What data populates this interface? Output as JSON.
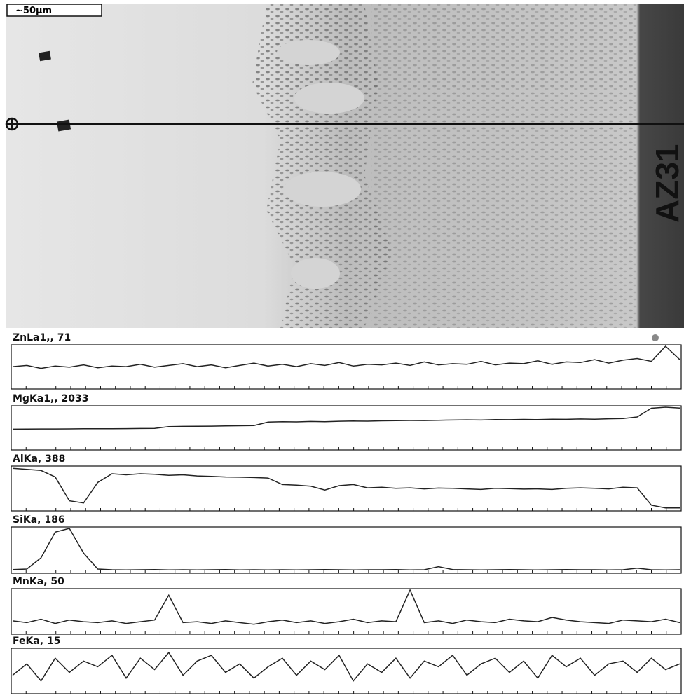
{
  "image": {
    "scale_bar": "~50μm",
    "label": "AZ31"
  },
  "chart_data": [
    {
      "type": "line",
      "title": "ZnLa1,, 71",
      "ylim": [
        0,
        71
      ],
      "color": "#222",
      "values": [
        36,
        38,
        33,
        37,
        35,
        39,
        34,
        37,
        36,
        40,
        35,
        38,
        41,
        36,
        39,
        34,
        38,
        42,
        37,
        40,
        36,
        41,
        38,
        43,
        37,
        40,
        39,
        42,
        38,
        44,
        39,
        41,
        40,
        45,
        39,
        42,
        41,
        46,
        40,
        44,
        43,
        48,
        42,
        47,
        50,
        45,
        71,
        48
      ]
    },
    {
      "type": "line",
      "title": "MgKa1,, 2033",
      "ylim": [
        0,
        2033
      ],
      "color": "#222",
      "values": [
        950,
        955,
        960,
        960,
        965,
        970,
        975,
        975,
        980,
        985,
        990,
        1080,
        1090,
        1095,
        1100,
        1110,
        1120,
        1130,
        1300,
        1320,
        1310,
        1330,
        1320,
        1340,
        1350,
        1345,
        1360,
        1370,
        1380,
        1375,
        1390,
        1400,
        1410,
        1400,
        1420,
        1415,
        1430,
        1420,
        1440,
        1435,
        1450,
        1440,
        1460,
        1470,
        1550,
        1980,
        2033,
        1990
      ]
    },
    {
      "type": "line",
      "title": "AlKa, 388",
      "ylim": [
        0,
        388
      ],
      "color": "#222",
      "values": [
        380,
        370,
        360,
        300,
        80,
        60,
        250,
        330,
        320,
        330,
        325,
        315,
        320,
        310,
        305,
        300,
        298,
        295,
        290,
        230,
        225,
        215,
        180,
        220,
        230,
        200,
        205,
        195,
        200,
        190,
        198,
        195,
        190,
        185,
        195,
        192,
        188,
        190,
        185,
        195,
        200,
        196,
        190,
        205,
        200,
        40,
        15,
        14
      ]
    },
    {
      "type": "line",
      "title": "SiKa, 186",
      "ylim": [
        0,
        186
      ],
      "color": "#222",
      "values": [
        10,
        12,
        60,
        170,
        186,
        80,
        12,
        9,
        8,
        9,
        10,
        8,
        9,
        8,
        9,
        10,
        8,
        9,
        8,
        9,
        8,
        9,
        10,
        9,
        8,
        9,
        9,
        10,
        8,
        9,
        22,
        10,
        9,
        8,
        9,
        10,
        9,
        8,
        9,
        10,
        9,
        9,
        8,
        9,
        16,
        9,
        8,
        9
      ]
    },
    {
      "type": "line",
      "title": "MnKa, 50",
      "ylim": [
        0,
        50
      ],
      "color": "#222",
      "values": [
        14,
        12,
        16,
        11,
        15,
        13,
        12,
        14,
        11,
        13,
        15,
        44,
        12,
        13,
        11,
        14,
        12,
        10,
        13,
        15,
        12,
        14,
        11,
        13,
        16,
        12,
        14,
        13,
        50,
        12,
        14,
        11,
        15,
        13,
        12,
        16,
        14,
        13,
        18,
        15,
        13,
        12,
        11,
        15,
        14,
        13,
        16,
        12
      ]
    },
    {
      "type": "line",
      "title": "FeKa, 15",
      "ylim": [
        0,
        15
      ],
      "color": "#222",
      "values": [
        6,
        10,
        4,
        12,
        7,
        11,
        9,
        13,
        5,
        12,
        8,
        14,
        6,
        11,
        13,
        7,
        10,
        5,
        9,
        12,
        6,
        11,
        8,
        13,
        4,
        10,
        7,
        12,
        5,
        11,
        9,
        13,
        6,
        10,
        12,
        7,
        11,
        5,
        13,
        9,
        12,
        6,
        10,
        11,
        7,
        12,
        8,
        10
      ]
    }
  ]
}
